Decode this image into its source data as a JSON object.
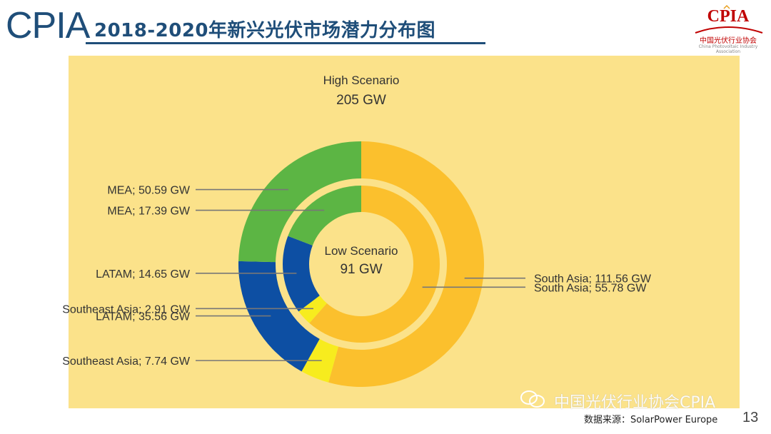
{
  "header": {
    "brand": "CPIA",
    "title": "2018-2020年新兴光伏市场潜力分布图"
  },
  "logo": {
    "text": "CPIA",
    "subtitle": "中国光伏行业协会",
    "subtitle_en": "China Photovoltaic Industry Association"
  },
  "footer": {
    "watermark": "中国光伏行业协会CPIA",
    "source": "数据来源：SolarPower Europe",
    "page_number": "13"
  },
  "colors": {
    "background": "#fbe28a",
    "south_asia": "#fbc02d",
    "southeast_asia": "#f7ec1e",
    "latam": "#0d4fa3",
    "mea": "#5cb544",
    "brand_blue": "#1f4e79",
    "brand_red": "#c00000"
  },
  "chart_data": {
    "type": "pie",
    "subtype": "nested-donut",
    "series": [
      {
        "name": "High Scenario",
        "total_label": "205 GW",
        "ring": "outer",
        "slices": [
          {
            "label": "South Asia",
            "value": 111.56,
            "label_text": "South Asia; 111.56 GW",
            "color": "#fbc02d"
          },
          {
            "label": "Southeast Asia",
            "value": 7.74,
            "label_text": "Southeast Asia; 7.74 GW",
            "color": "#f7ec1e"
          },
          {
            "label": "LATAM",
            "value": 35.56,
            "label_text": "LATAM; 35.56 GW",
            "color": "#0d4fa3"
          },
          {
            "label": "MEA",
            "value": 50.59,
            "label_text": "MEA; 50.59 GW",
            "color": "#5cb544"
          }
        ]
      },
      {
        "name": "Low Scenario",
        "total_label": "91 GW",
        "ring": "inner",
        "slices": [
          {
            "label": "South Asia",
            "value": 55.78,
            "label_text": "South Asia; 55.78 GW",
            "color": "#fbc02d"
          },
          {
            "label": "Southeast Asia",
            "value": 2.91,
            "label_text": "Southeast Asia; 2.91 GW",
            "color": "#f7ec1e"
          },
          {
            "label": "LATAM",
            "value": 14.65,
            "label_text": "LATAM; 14.65 GW",
            "color": "#0d4fa3"
          },
          {
            "label": "MEA",
            "value": 17.39,
            "label_text": "MEA; 17.39 GW",
            "color": "#5cb544"
          }
        ]
      }
    ]
  }
}
